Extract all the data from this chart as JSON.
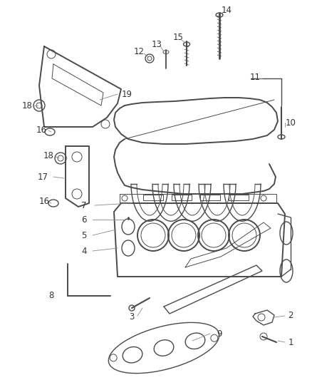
{
  "bg_color": "#ffffff",
  "line_color": "#4a4a4a",
  "label_color": "#333333",
  "leader_color": "#888888",
  "fig_width": 4.38,
  "fig_height": 5.33,
  "dpi": 100
}
